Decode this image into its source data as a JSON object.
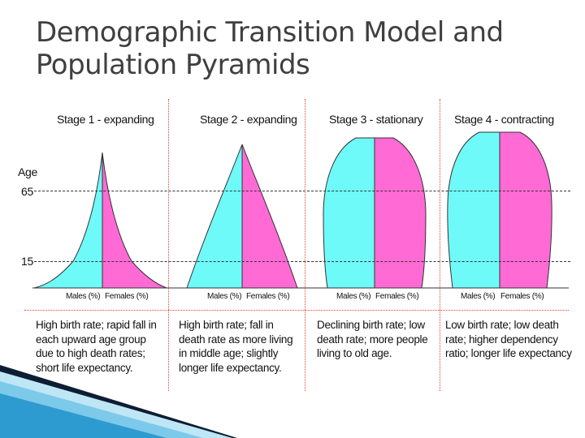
{
  "slide": {
    "title_lines": [
      "Demographic Transition Model and",
      "Population Pyramids"
    ]
  },
  "axis": {
    "age_label": "Age",
    "tick_65": "65",
    "tick_15": "15"
  },
  "stages": [
    {
      "title": "Stage 1 - expanding",
      "males_label": "Males (%)",
      "females_label": "Females (%)",
      "description": "High birth rate; rapid fall in each upward age group due to high death rates; short life expectancy."
    },
    {
      "title": "Stage 2 - expanding",
      "males_label": "Males (%)",
      "females_label": "Females (%)",
      "description": "High birth rate; fall in death rate as more living in middle age; slightly longer life expectancy."
    },
    {
      "title": "Stage 3 - stationary",
      "males_label": "Males (%)",
      "females_label": "Females (%)",
      "description": "Declining birth rate; low death rate; more people living to old age."
    },
    {
      "title": "Stage 4 - contracting",
      "males_label": "Males (%)",
      "females_label": "Females (%)",
      "description": "Low birth rate; low death rate; higher dependency ratio; longer life expectancy"
    }
  ],
  "colors": {
    "males": "#6ffafa",
    "females": "#ff6ad5",
    "divider": "#dd4433"
  }
}
